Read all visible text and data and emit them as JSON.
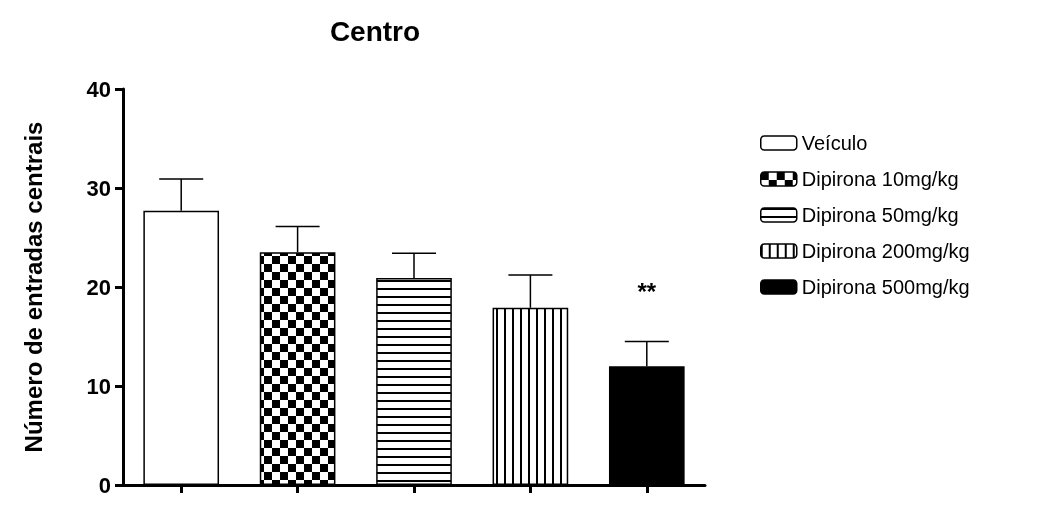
{
  "chart_data": {
    "type": "bar",
    "title": "Centro",
    "ylabel": "Número de entradas centrais",
    "categories": [
      null,
      null,
      null,
      null,
      null
    ],
    "series": [
      {
        "name": "Veículo",
        "color": "#ffffff",
        "values": [
          27.7,
          null,
          null,
          null,
          null
        ],
        "errors": [
          [
            27.7,
            30.9
          ],
          null,
          null,
          null,
          null
        ]
      },
      {
        "name": "Dipirona 10mg/kg",
        "color": "#000000",
        "values": [
          null,
          23.5,
          null,
          null,
          null
        ],
        "errors": [
          null,
          [
            23.5,
            26.1
          ],
          null,
          null,
          null
        ]
      },
      {
        "name": "Dipirona 50mg/kg",
        "color": "#000000",
        "values": [
          null,
          null,
          20.9,
          null,
          null
        ],
        "errors": [
          null,
          null,
          [
            20.9,
            23.4
          ],
          null,
          null
        ]
      },
      {
        "name": "Dipirona 200mg/kg",
        "color": "#000000",
        "values": [
          null,
          null,
          null,
          17.9,
          null
        ],
        "errors": [
          null,
          null,
          null,
          [
            17.9,
            21.2
          ],
          null
        ]
      },
      {
        "name": "Dipirona 500mg/kg",
        "color": "#000000",
        "values": [
          null,
          null,
          null,
          null,
          12.0
        ],
        "errors": [
          null,
          null,
          null,
          null,
          [
            12.0,
            14.5
          ]
        ]
      }
    ],
    "ylim": [
      0,
      40
    ],
    "yticks": [
      0,
      10,
      20,
      30,
      40
    ],
    "grid": false,
    "legend": "right",
    "annotations": [
      "**"
    ]
  }
}
